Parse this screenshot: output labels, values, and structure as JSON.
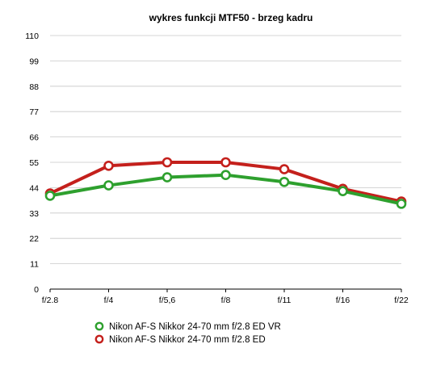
{
  "chart_data": {
    "type": "line",
    "title": "wykres funkcji MTF50 - brzeg kadru",
    "xlabel": "",
    "ylabel": "",
    "categories": [
      "f/2.8",
      "f/4",
      "f/5,6",
      "f/8",
      "f/11",
      "f/16",
      "f/22"
    ],
    "ylim": [
      0,
      110
    ],
    "yticks": [
      0,
      11,
      22,
      33,
      44,
      55,
      66,
      77,
      88,
      99,
      110
    ],
    "grid": true,
    "legend_position": "bottom",
    "series": [
      {
        "name": "Nikon AF-S Nikkor 24-70 mm f/2.8 ED VR",
        "color": "#2ea02e",
        "values": [
          40.5,
          45,
          48.5,
          49.5,
          46.5,
          42.5,
          37
        ]
      },
      {
        "name": "Nikon AF-S Nikkor 24-70 mm f/2.8 ED",
        "color": "#c4201c",
        "values": [
          41.5,
          53.5,
          55,
          55,
          52,
          43.5,
          38
        ]
      }
    ]
  }
}
